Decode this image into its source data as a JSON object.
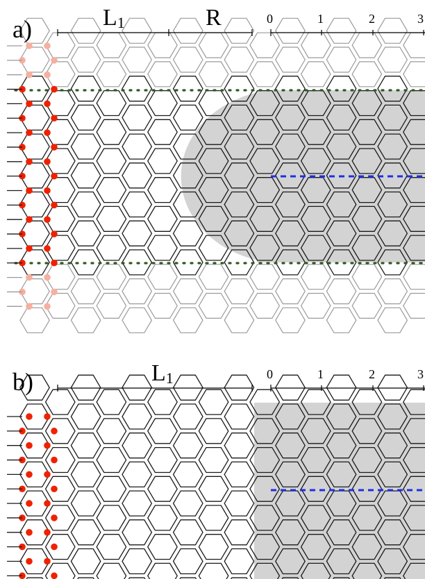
{
  "colors": {
    "lattice": "#1a1a1a",
    "lattice_faded": "#9a9a9a",
    "edge_atoms": "#ee2200",
    "edge_atoms_faded": "#f5b0a0",
    "shaded_region": "#d3d3d3",
    "boundary_dots": "#2f5a1f",
    "center_line": "#1f2fe6"
  },
  "panels": [
    {
      "label": "a)",
      "dims": [
        {
          "text": "L",
          "sub": "1"
        },
        {
          "text": "R",
          "sub": ""
        }
      ],
      "ticks": [
        "0",
        "1",
        "2",
        "3"
      ]
    },
    {
      "label": "b)",
      "dims": [
        {
          "text": "L",
          "sub": "1"
        }
      ],
      "ticks": [
        "0",
        "1",
        "2",
        "3"
      ]
    }
  ]
}
